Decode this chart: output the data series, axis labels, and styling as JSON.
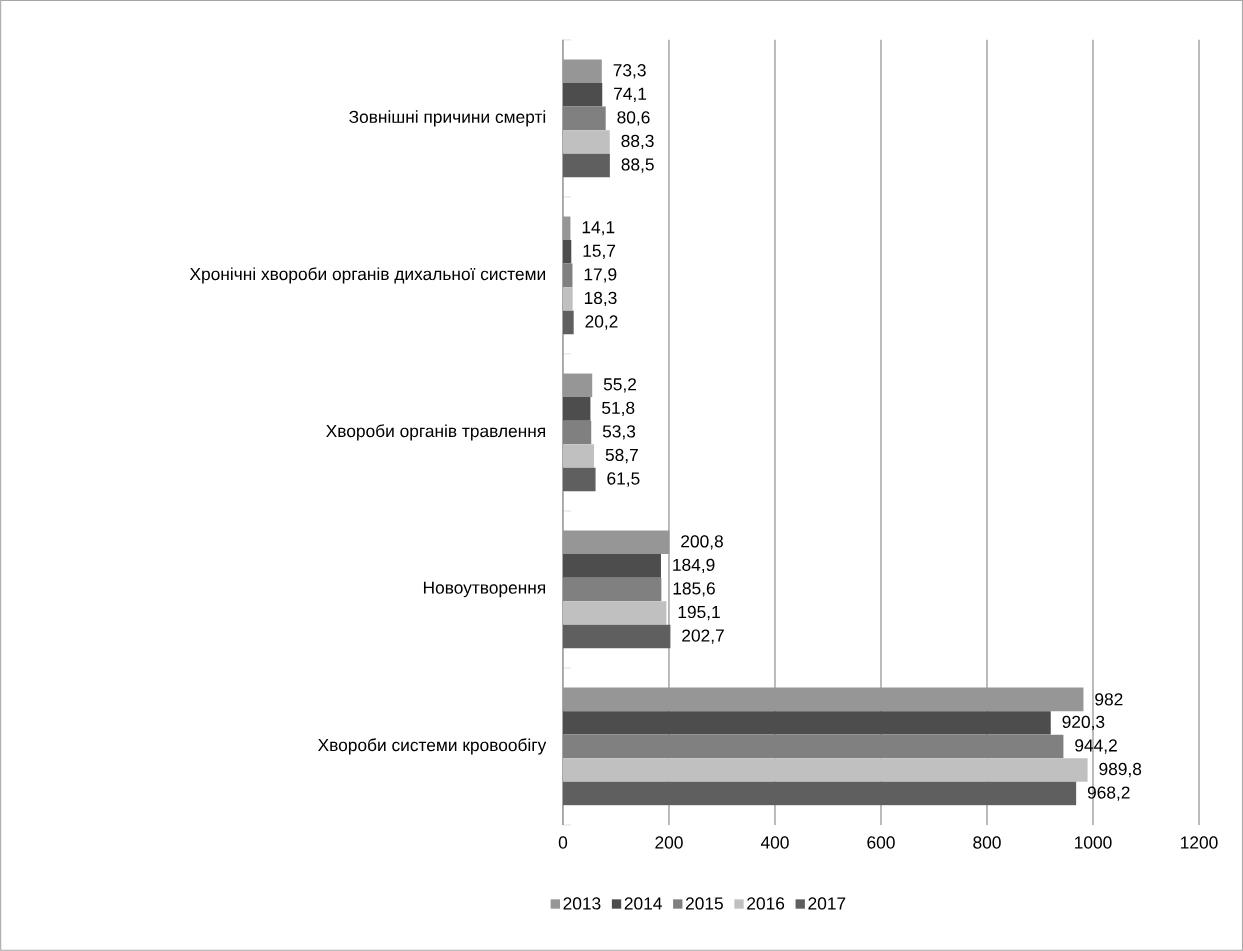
{
  "chart_data": {
    "type": "bar",
    "orientation": "horizontal",
    "categories": [
      "Зовнішні причини смерті",
      "Хронічні хвороби органів дихальної системи",
      "Хвороби органів травлення",
      "Новоутворення",
      "Хвороби системи кровообігу"
    ],
    "series": [
      {
        "name": "2013",
        "color": "#969696",
        "values": [
          73.3,
          14.1,
          55.2,
          200.8,
          982
        ],
        "value_labels": [
          "73,3",
          "14,1",
          "55,2",
          "200,8",
          "982"
        ]
      },
      {
        "name": "2014",
        "color": "#4d4d4d",
        "values": [
          74.1,
          15.7,
          51.8,
          184.9,
          920.3
        ],
        "value_labels": [
          "74,1",
          "15,7",
          "51,8",
          "184,9",
          "920,3"
        ]
      },
      {
        "name": "2015",
        "color": "#808080",
        "values": [
          80.6,
          17.9,
          53.3,
          185.6,
          944.2
        ],
        "value_labels": [
          "80,6",
          "17,9",
          "53,3",
          "185,6",
          "944,2"
        ]
      },
      {
        "name": "2016",
        "color": "#c0c0c0",
        "values": [
          88.3,
          18.3,
          58.7,
          195.1,
          989.8
        ],
        "value_labels": [
          "88,3",
          "18,3",
          "58,7",
          "195,1",
          "989,8"
        ]
      },
      {
        "name": "2017",
        "color": "#5f5f5f",
        "values": [
          88.5,
          20.2,
          61.5,
          202.7,
          968.2
        ],
        "value_labels": [
          "88,5",
          "20,2",
          "61,5",
          "202,7",
          "968,2"
        ]
      }
    ],
    "xlim": [
      0,
      1200
    ],
    "xticks": [
      0,
      200,
      400,
      600,
      800,
      1000,
      1200
    ],
    "grid": "x",
    "legend": "bottom"
  }
}
